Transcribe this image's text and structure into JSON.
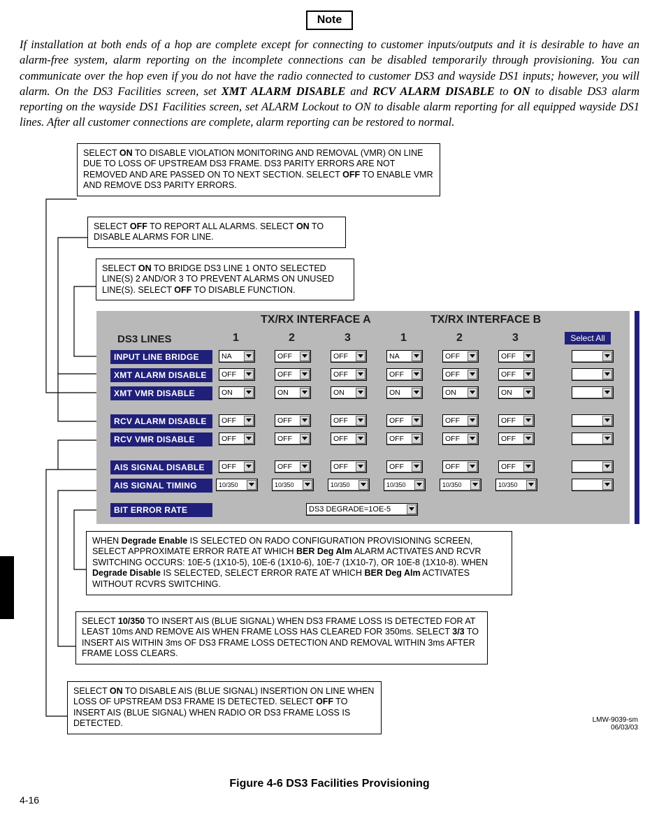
{
  "note_label": "Note",
  "note_html_parts": [
    "If installation at both ends of a hop are complete except for connecting to customer inputs/outputs and it is desirable to have an alarm-free system, alarm reporting on the incomplete connections can be disabled temporarily through provisioning. You can communicate over the hop even if you do not have the radio connected to customer DS3 and wayside DS1 inputs; however, you will alarm. On the DS3 Facilities screen, set ",
    "XMT ALARM DISABLE",
    " and ",
    "RCV ALARM DISABLE",
    " to ",
    "ON",
    " to disable DS3 alarm reporting on the wayside DS1 Facilities screen, set ALARM Lockout to ON to disable alarm reporting for all equipped wayside DS1 lines. After all customer connections are complete, alarm reporting can be restored to normal."
  ],
  "callouts": {
    "c1": {
      "parts": [
        "SELECT ",
        "ON",
        " TO DISABLE VIOLATION MONITORING AND REMOVAL (VMR) ON LINE DUE TO LOSS OF UPSTREAM DS3 FRAME. DS3 PARITY ERRORS ARE NOT REMOVED AND ARE PASSED ON TO NEXT SECTION. SELECT ",
        "OFF",
        " TO ENABLE VMR AND REMOVE DS3 PARITY ERRORS."
      ]
    },
    "c2": {
      "parts": [
        "SELECT ",
        "OFF",
        " TO REPORT ALL ALARMS. SELECT ",
        "ON",
        " TO DISABLE ALARMS FOR LINE."
      ]
    },
    "c3": {
      "parts": [
        "SELECT ",
        "ON",
        " TO BRIDGE DS3 LINE 1 ONTO SELECTED LINE(S) 2 AND/OR 3 TO PREVENT ALARMS ON UNUSED LINE(S). SELECT ",
        "OFF",
        " TO DISABLE FUNCTION."
      ]
    },
    "c4": {
      "parts": [
        "WHEN ",
        "Degrade Enable",
        " IS SELECTED ON RADO CONFIGURATION PROVISIONING SCREEN, SELECT APPROXIMATE ERROR RATE AT WHICH ",
        "BER Deg Alm",
        " ALARM ACTIVATES AND RCVR SWITCHING OCCURS: 10E-5 (1X10-5), 10E-6 (1X10-6), 10E-7 (1X10-7), OR 10E-8 (1X10-8). WHEN ",
        "Degrade Disable",
        " IS SELECTED, SELECT ERROR RATE AT WHICH ",
        "BER Deg Alm",
        " ACTIVATES WITHOUT RCVRS SWITCHING."
      ]
    },
    "c5": {
      "parts": [
        "SELECT ",
        "10/350",
        " TO INSERT AIS (BLUE SIGNAL) WHEN DS3 FRAME LOSS IS DETECTED FOR AT LEAST 10ms AND REMOVE AIS WHEN FRAME LOSS HAS CLEARED FOR 350ms. SELECT ",
        "3/3",
        " TO INSERT AIS WITHIN 3ms OF DS3 FRAME LOSS DETECTION AND REMOVAL WITHIN 3ms AFTER FRAME LOSS CLEARS."
      ]
    },
    "c6": {
      "parts": [
        "SELECT ",
        "ON",
        " TO DISABLE AIS (BLUE SIGNAL) INSERTION ON LINE WHEN LOSS OF UPSTREAM DS3 FRAME IS DETECTED. SELECT ",
        "OFF",
        " TO INSERT AIS (BLUE SIGNAL) WHEN RADIO OR DS3 FRAME LOSS IS DETECTED."
      ]
    }
  },
  "panel": {
    "title_a": "TX/RX INTERFACE A",
    "title_b": "TX/RX INTERFACE B",
    "ds3_lines": "DS3 LINES",
    "select_all": "Select All",
    "colnums_a": [
      "1",
      "2",
      "3"
    ],
    "colnums_b": [
      "1",
      "2",
      "3"
    ],
    "colors": {
      "panel_bg": "#b9b9b9",
      "label_bg": "#20207a",
      "label_fg": "#ffffff",
      "dropdown_bg": "#ffffff"
    },
    "row_labels": [
      "INPUT LINE BRIDGE",
      "XMT ALARM DISABLE",
      "XMT VMR DISABLE",
      "RCV ALARM DISABLE",
      "RCV VMR DISABLE",
      "AIS SIGNAL DISABLE",
      "AIS SIGNAL TIMING",
      "BIT ERROR RATE"
    ],
    "cells": {
      "r0": [
        "NA",
        "OFF",
        "OFF",
        "NA",
        "OFF",
        "OFF"
      ],
      "r1": [
        "OFF",
        "OFF",
        "OFF",
        "OFF",
        "OFF",
        "OFF"
      ],
      "r2": [
        "ON",
        "ON",
        "ON",
        "ON",
        "ON",
        "ON"
      ],
      "r3": [
        "OFF",
        "OFF",
        "OFF",
        "OFF",
        "OFF",
        "OFF"
      ],
      "r4": [
        "OFF",
        "OFF",
        "OFF",
        "OFF",
        "OFF",
        "OFF"
      ],
      "r5": [
        "OFF",
        "OFF",
        "OFF",
        "OFF",
        "OFF",
        "OFF"
      ],
      "r6": [
        "10/350",
        "10/350",
        "10/350",
        "10/350",
        "10/350",
        "10/350"
      ]
    },
    "bit_error": "DS3 DEGRADE=1OE-5"
  },
  "figure_caption": "Figure 4-6  DS3 Facilities Provisioning",
  "page_number": "4-16",
  "imgref1": "LMW-9039-sm",
  "imgref2": "06/03/03"
}
